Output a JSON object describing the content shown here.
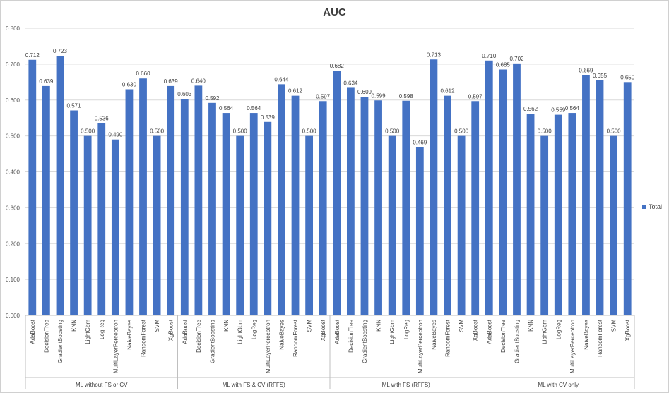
{
  "chart_data": {
    "type": "bar",
    "title": "AUC",
    "xlabel": "",
    "ylabel": "",
    "ylim": [
      0,
      0.8
    ],
    "ytick_step": 0.1,
    "grid": true,
    "legend_position": "right",
    "bar_color": "#4472c4",
    "series": [
      {
        "name": "Total"
      }
    ],
    "groups": [
      {
        "name": "ML without FS or CV",
        "categories": [
          "AdaBoost",
          "DecisionTree",
          "GradientBoosting",
          "KNN",
          "LightGbm",
          "LogReg",
          "MultiLayerPerceptron",
          "NaiveBayes",
          "RandomForest",
          "SVM",
          "XgBoost"
        ],
        "values": [
          0.712,
          0.639,
          0.723,
          0.571,
          0.5,
          0.536,
          0.49,
          0.63,
          0.66,
          0.5,
          0.639
        ]
      },
      {
        "name": "ML with FS & CV (RFFS)",
        "categories": [
          "AdaBoost",
          "DecisionTree",
          "GradientBoosting",
          "KNN",
          "LightGbm",
          "LogReg",
          "MultiLayerPerceptron",
          "NaiveBayes",
          "RandomForest",
          "SVM",
          "XgBoost"
        ],
        "values": [
          0.603,
          0.64,
          0.592,
          0.564,
          0.5,
          0.564,
          0.539,
          0.644,
          0.612,
          0.5,
          0.597
        ]
      },
      {
        "name": "ML with FS (RFFS)",
        "categories": [
          "AdaBoost",
          "DecisionTree",
          "GradientBoosting",
          "KNN",
          "LightGbm",
          "LogReg",
          "MultiLayerPerceptron",
          "NaiveBayes",
          "RandomForest",
          "SVM",
          "XgBoost"
        ],
        "values": [
          0.682,
          0.634,
          0.609,
          0.599,
          0.5,
          0.598,
          0.469,
          0.713,
          0.612,
          0.5,
          0.597
        ]
      },
      {
        "name": "ML with CV only",
        "categories": [
          "AdaBoost",
          "DecisionTree",
          "GradientBoosting",
          "KNN",
          "LightGbm",
          "LogReg",
          "MultiLayerPerceptron",
          "NaiveBayes",
          "RandomForest",
          "SVM",
          "XgBoost"
        ],
        "values": [
          0.71,
          0.685,
          0.702,
          0.562,
          0.5,
          0.559,
          0.564,
          0.669,
          0.655,
          0.5,
          0.65
        ]
      }
    ]
  }
}
